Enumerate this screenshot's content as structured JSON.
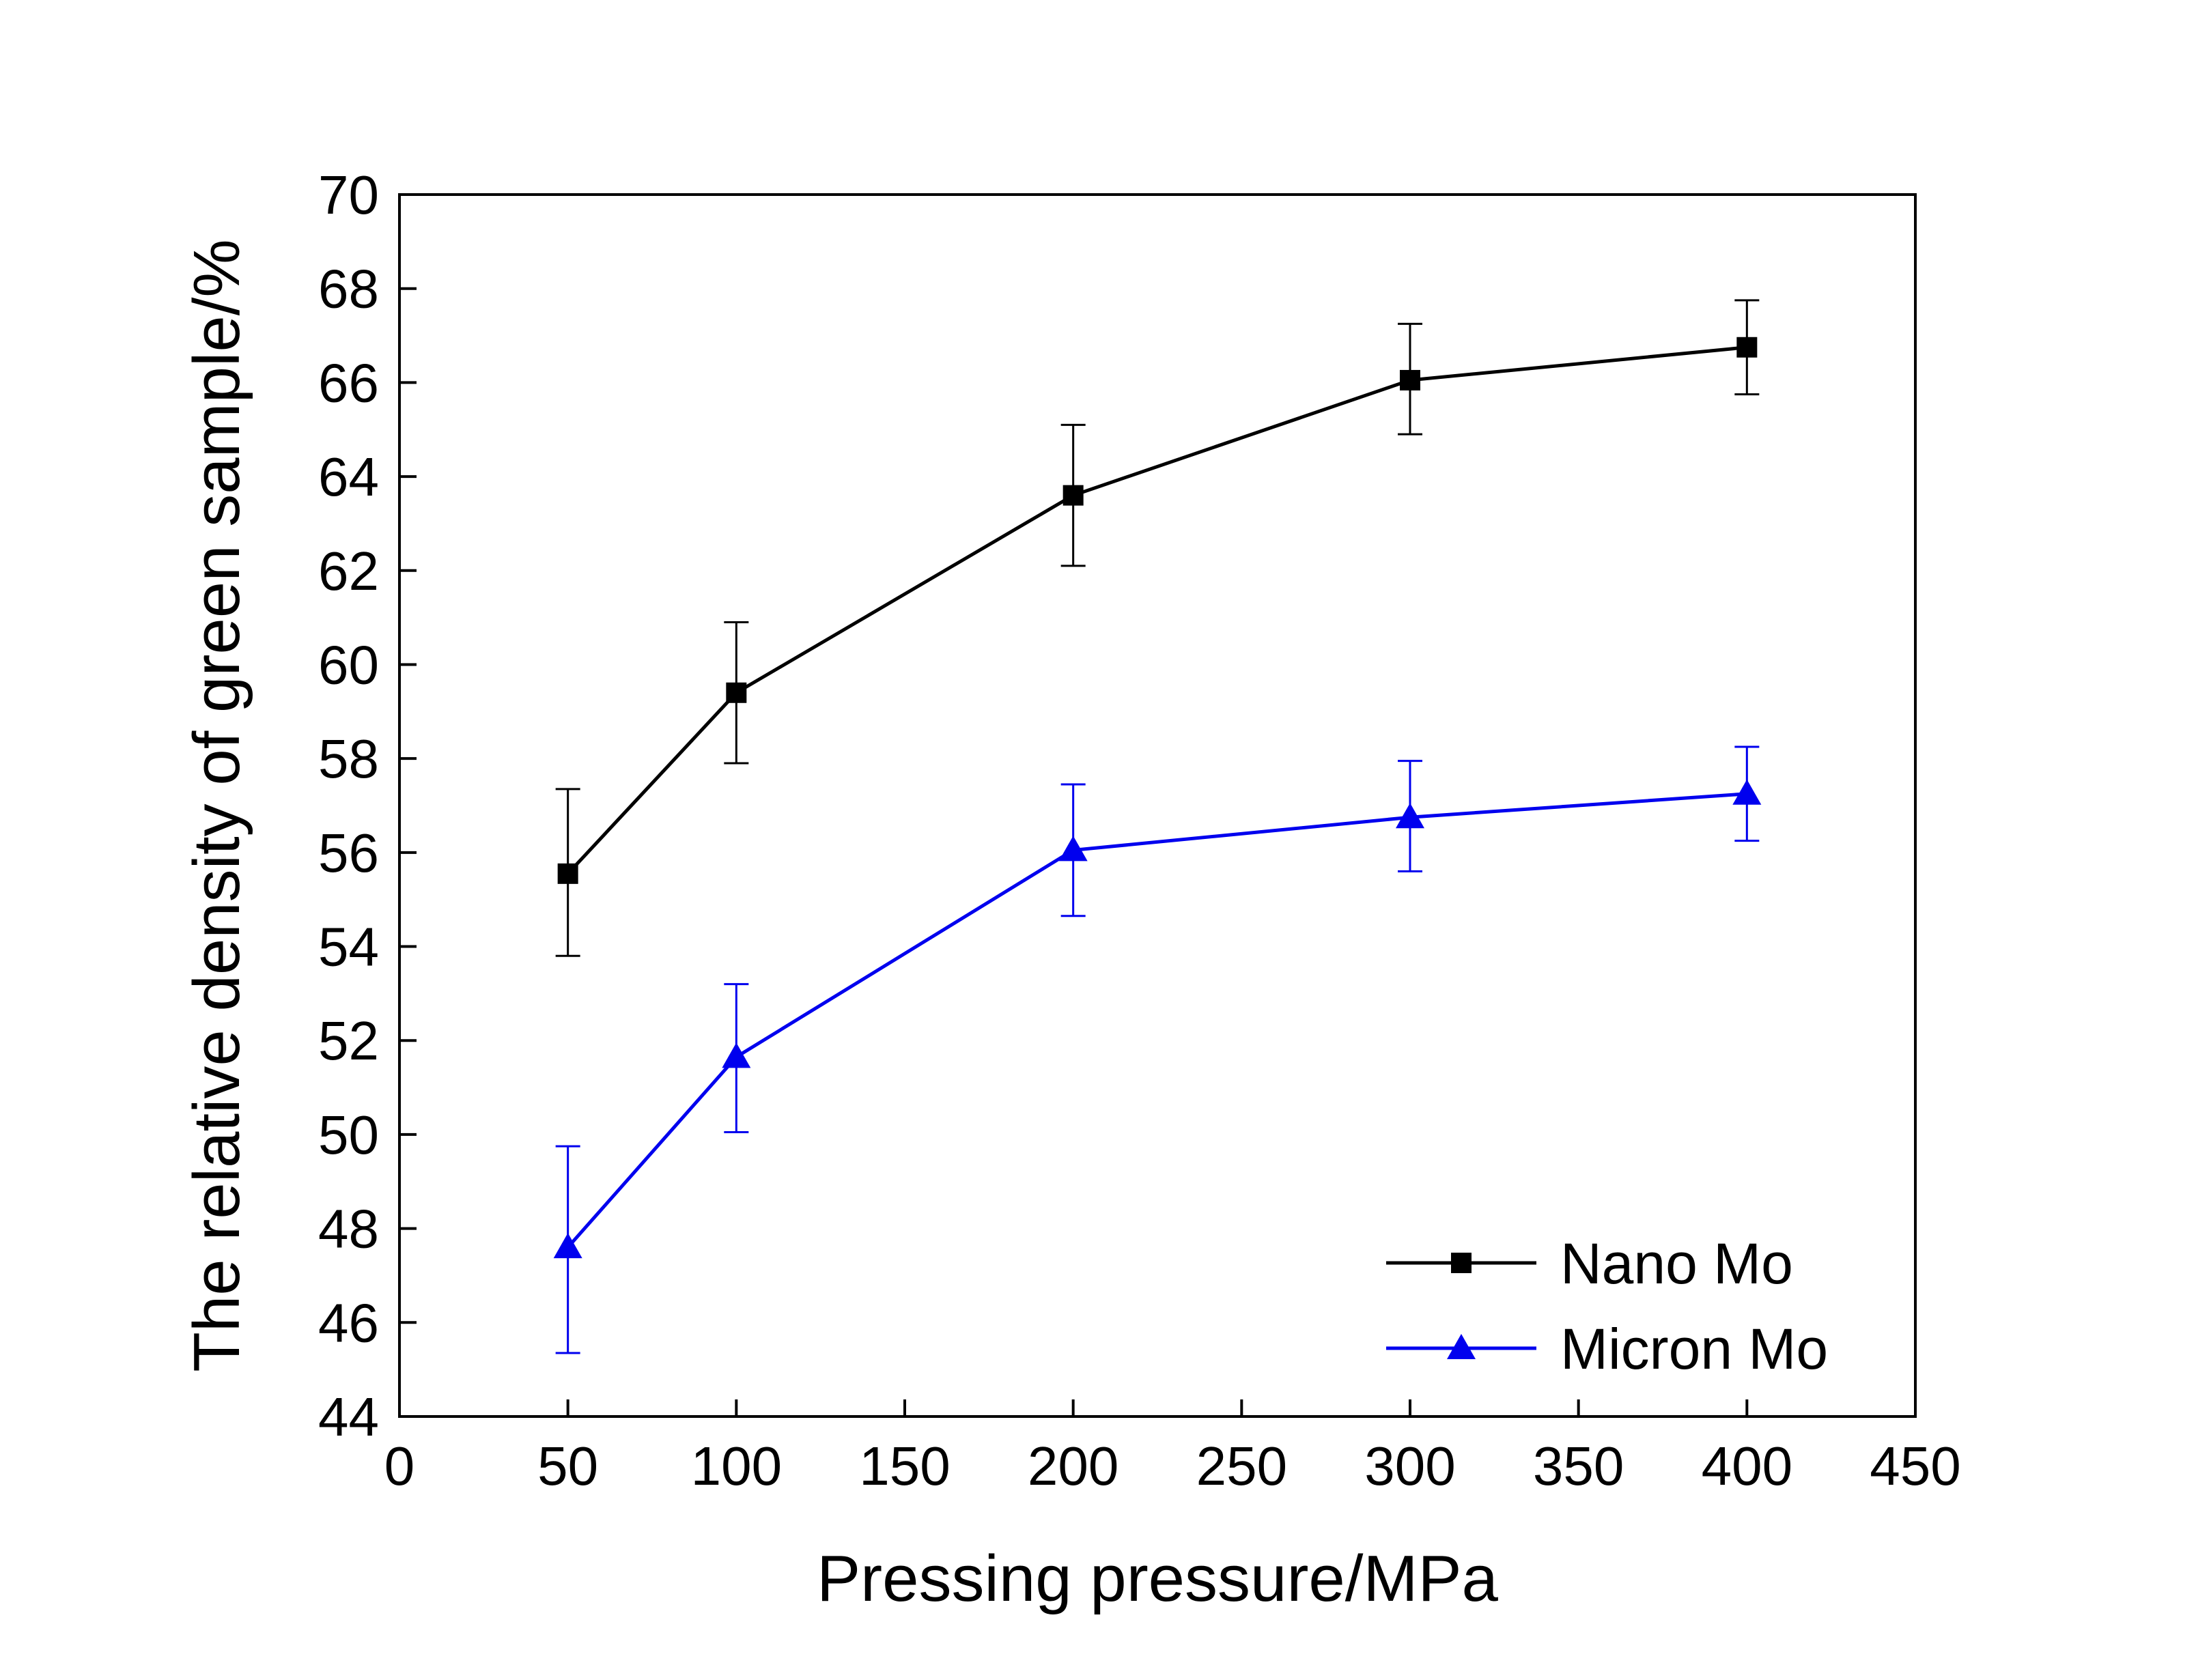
{
  "chart_data": {
    "type": "line",
    "title": "",
    "xlabel": "Pressing pressure/MPa",
    "ylabel": "The relative density of green sample/%",
    "xlim": [
      0,
      450
    ],
    "ylim": [
      44,
      70
    ],
    "xticks": [
      0,
      50,
      100,
      150,
      200,
      250,
      300,
      350,
      400,
      450
    ],
    "yticks": [
      44,
      46,
      48,
      50,
      52,
      54,
      56,
      58,
      60,
      62,
      64,
      66,
      68,
      70
    ],
    "grid": false,
    "legend_position": "bottom-right",
    "x": [
      50,
      100,
      200,
      300,
      400
    ],
    "series": [
      {
        "name": "Nano Mo",
        "color": "#000000",
        "marker": "square",
        "values": [
          55.55,
          59.4,
          63.6,
          66.05,
          66.75
        ],
        "error_low": [
          53.8,
          57.9,
          62.1,
          64.9,
          65.75
        ],
        "error_high": [
          57.35,
          60.9,
          65.1,
          67.25,
          67.75
        ]
      },
      {
        "name": "Micron Mo",
        "color": "#0000ee",
        "marker": "triangle",
        "values": [
          47.6,
          51.65,
          56.05,
          56.75,
          57.25
        ],
        "error_low": [
          45.35,
          50.05,
          54.65,
          55.6,
          56.25
        ],
        "error_high": [
          49.75,
          53.2,
          57.45,
          57.95,
          58.25
        ]
      }
    ]
  }
}
